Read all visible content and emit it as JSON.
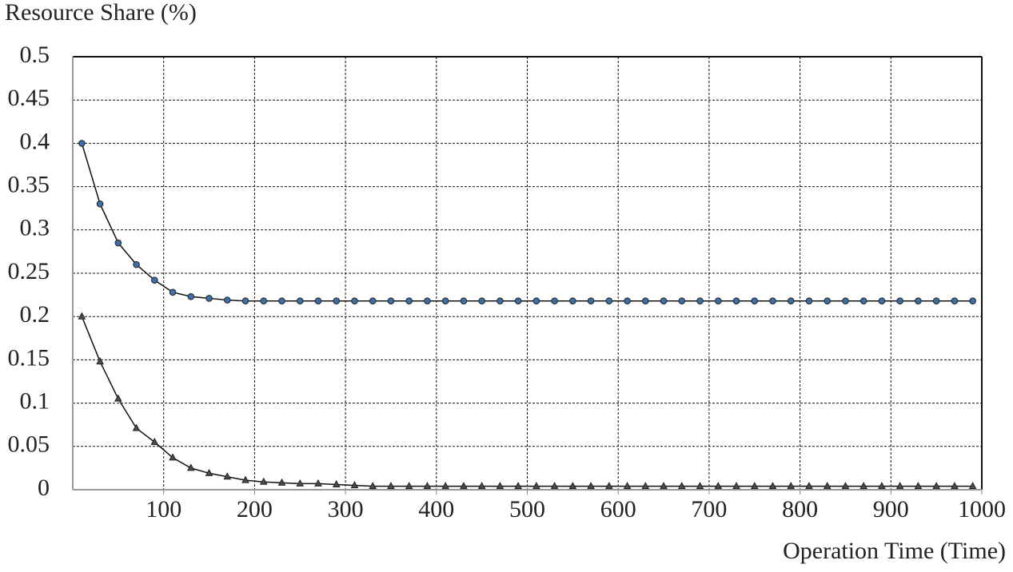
{
  "chart_data": {
    "type": "line",
    "y_label": "Resource Share (%)",
    "x_label": "Operation Time (Time)",
    "x": [
      10,
      30,
      50,
      70,
      90,
      110,
      130,
      150,
      170,
      190,
      210,
      230,
      250,
      270,
      290,
      310,
      330,
      350,
      370,
      390,
      410,
      430,
      450,
      470,
      490,
      510,
      530,
      550,
      570,
      590,
      610,
      630,
      650,
      670,
      690,
      710,
      730,
      750,
      770,
      790,
      810,
      830,
      850,
      870,
      890,
      910,
      930,
      950,
      970,
      990
    ],
    "series": [
      {
        "color": "#3c6ea8",
        "marker": "circle",
        "values": [
          0.4,
          0.33,
          0.285,
          0.26,
          0.242,
          0.228,
          0.223,
          0.221,
          0.219,
          0.218,
          0.218,
          0.218,
          0.218,
          0.218,
          0.218,
          0.218,
          0.218,
          0.218,
          0.218,
          0.218,
          0.218,
          0.218,
          0.218,
          0.218,
          0.218,
          0.218,
          0.218,
          0.218,
          0.218,
          0.218,
          0.218,
          0.218,
          0.218,
          0.218,
          0.218,
          0.218,
          0.218,
          0.218,
          0.218,
          0.218,
          0.218,
          0.218,
          0.218,
          0.218,
          0.218,
          0.218,
          0.218,
          0.218,
          0.218,
          0.218
        ]
      },
      {
        "color": "#4a4a55",
        "marker": "triangle",
        "values": [
          0.2,
          0.148,
          0.105,
          0.071,
          0.055,
          0.037,
          0.025,
          0.019,
          0.015,
          0.011,
          0.009,
          0.008,
          0.007,
          0.007,
          0.006,
          0.005,
          0.004,
          0.004,
          0.004,
          0.004,
          0.004,
          0.004,
          0.004,
          0.004,
          0.004,
          0.004,
          0.004,
          0.004,
          0.004,
          0.004,
          0.004,
          0.004,
          0.004,
          0.004,
          0.004,
          0.004,
          0.004,
          0.004,
          0.004,
          0.004,
          0.004,
          0.004,
          0.004,
          0.004,
          0.004,
          0.004,
          0.004,
          0.004,
          0.004,
          0.004
        ]
      }
    ],
    "xlim": [
      0,
      1000
    ],
    "xticks": [
      100,
      200,
      300,
      400,
      500,
      600,
      700,
      800,
      900,
      1000
    ],
    "ylim": [
      0,
      0.5
    ],
    "yticks": [
      0,
      0.05,
      0.1,
      0.15,
      0.2,
      0.25,
      0.3,
      0.35,
      0.4,
      0.45,
      0.5
    ],
    "grid": true
  }
}
